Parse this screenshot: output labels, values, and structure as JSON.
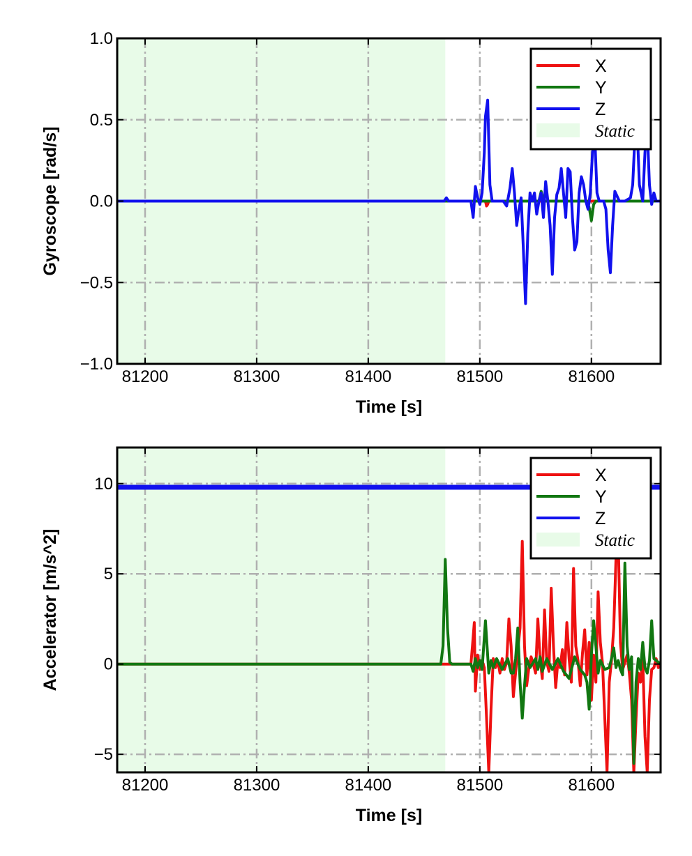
{
  "chart_data": [
    {
      "type": "line",
      "xlabel": "Time [s]",
      "ylabel": "Gyroscope [rad/s]",
      "xlim": [
        81175,
        81662
      ],
      "ylim": [
        -1.0,
        1.0
      ],
      "xticks": [
        81200,
        81300,
        81400,
        81500,
        81600
      ],
      "xtick_labels": [
        "81200",
        "81300",
        "81400",
        "81500",
        "81600"
      ],
      "yticks": [
        1.0,
        0.5,
        0.0,
        -0.5,
        -1.0
      ],
      "ytick_labels": [
        "1.0",
        "0.5",
        "0.0",
        "−0.5",
        "−1.0"
      ],
      "grid": true,
      "legend_position": "top-right",
      "static_region": {
        "label": "Static",
        "x_start": 81175,
        "x_end": 81469,
        "color": "#e8fbe8"
      },
      "series": [
        {
          "name": "X",
          "color": "#ee1111",
          "x": [
            81175,
            81469,
            81505,
            81506,
            81507,
            81508,
            81662
          ],
          "y": [
            0,
            0,
            0,
            -0.03,
            -0.02,
            0,
            0
          ]
        },
        {
          "name": "Y",
          "color": "#117711",
          "x": [
            81175,
            81469,
            81553,
            81555,
            81557,
            81596,
            81598,
            81600,
            81602,
            81604,
            81662
          ],
          "y": [
            0,
            0,
            0,
            0.06,
            0,
            0,
            -0.04,
            -0.12,
            -0.02,
            0,
            0
          ]
        },
        {
          "name": "Z",
          "color": "#1111ee",
          "x": [
            81175,
            81468,
            81470,
            81472,
            81492,
            81494,
            81496,
            81498,
            81500,
            81502,
            81504,
            81505,
            81507,
            81509,
            81511,
            81513,
            81518,
            81521,
            81524,
            81527,
            81529,
            81531,
            81533,
            81535,
            81537,
            81539,
            81541,
            81543,
            81545,
            81547,
            81549,
            81551,
            81553,
            81555,
            81557,
            81559,
            81561,
            81563,
            81565,
            81567,
            81569,
            81571,
            81573,
            81575,
            81577,
            81579,
            81581,
            81583,
            81585,
            81587,
            81589,
            81591,
            81593,
            81595,
            81597,
            81599,
            81601,
            81603,
            81605,
            81607,
            81609,
            81611,
            81613,
            81615,
            81617,
            81619,
            81621,
            81625,
            81630,
            81635,
            81637,
            81639,
            81641,
            81643,
            81646,
            81648,
            81650,
            81652,
            81654,
            81656,
            81658,
            81662
          ],
          "y": [
            0,
            0,
            0.02,
            0,
            0,
            -0.1,
            0.09,
            0.02,
            -0.02,
            0.05,
            0.3,
            0.52,
            0.62,
            0.1,
            0,
            0,
            0,
            0,
            -0.03,
            0.08,
            0.2,
            0.05,
            -0.15,
            -0.05,
            0.02,
            -0.3,
            -0.63,
            -0.2,
            0.05,
            0,
            0.05,
            -0.08,
            0,
            0.05,
            -0.1,
            0.12,
            0.0,
            -0.15,
            -0.45,
            -0.1,
            0.04,
            0.08,
            0.2,
            0.05,
            -0.1,
            0.2,
            0.18,
            -0.1,
            -0.3,
            -0.25,
            0.05,
            0.15,
            0.1,
            0,
            -0.05,
            0.05,
            0.3,
            0.4,
            0.05,
            0,
            0.0,
            0,
            -0.05,
            -0.3,
            -0.44,
            -0.15,
            0.06,
            0,
            0,
            0.02,
            0.1,
            0.4,
            0.45,
            0.1,
            0,
            0.3,
            0.45,
            0.1,
            -0.02,
            0.05,
            0,
            0
          ]
        }
      ]
    },
    {
      "type": "line",
      "xlabel": "Time [s]",
      "ylabel": "Accelerator [m/s^2]",
      "xlim": [
        81175,
        81662
      ],
      "ylim": [
        -6.0,
        12.0
      ],
      "xticks": [
        81200,
        81300,
        81400,
        81500,
        81600
      ],
      "xtick_labels": [
        "81200",
        "81300",
        "81400",
        "81500",
        "81600"
      ],
      "yticks": [
        10,
        5,
        0,
        -5
      ],
      "ytick_labels": [
        "10",
        "5",
        "0",
        "−5"
      ],
      "grid": true,
      "legend_position": "top-right",
      "static_region": {
        "label": "Static",
        "x_start": 81175,
        "x_end": 81469,
        "color": "#e8fbe8"
      },
      "series": [
        {
          "name": "X",
          "color": "#ee1111",
          "x": [
            81175,
            81492,
            81494,
            81495,
            81496,
            81498,
            81500,
            81502,
            81504,
            81506,
            81508,
            81510,
            81512,
            81514,
            81516,
            81518,
            81520,
            81522,
            81524,
            81526,
            81528,
            81530,
            81532,
            81534,
            81536,
            81538,
            81540,
            81542,
            81544,
            81546,
            81548,
            81550,
            81552,
            81554,
            81556,
            81558,
            81560,
            81562,
            81564,
            81566,
            81568,
            81570,
            81572,
            81574,
            81576,
            81578,
            81580,
            81582,
            81584,
            81586,
            81588,
            81590,
            81592,
            81594,
            81596,
            81598,
            81600,
            81602,
            81604,
            81606,
            81608,
            81610,
            81612,
            81614,
            81616,
            81618,
            81620,
            81622,
            81624,
            81626,
            81628,
            81630,
            81632,
            81634,
            81636,
            81638,
            81640,
            81642,
            81644,
            81646,
            81648,
            81650,
            81652,
            81654,
            81656,
            81658,
            81660,
            81662
          ],
          "y": [
            0,
            0,
            1.5,
            2.3,
            -1.5,
            0.5,
            -0.3,
            0.2,
            -0.2,
            -3.0,
            -6.0,
            -2.5,
            0.3,
            -0.2,
            0.2,
            -0.5,
            0.3,
            -0.3,
            0.1,
            2.5,
            1.0,
            -1.8,
            -0.5,
            0.8,
            2.0,
            6.8,
            1.0,
            -1.2,
            -0.2,
            0.4,
            0.0,
            -0.5,
            2.5,
            0.3,
            -0.8,
            3.0,
            0.1,
            -0.4,
            4.2,
            1.0,
            -1.3,
            0.2,
            -0.2,
            0.8,
            -0.6,
            2.3,
            0.3,
            -1.0,
            5.3,
            1.0,
            0.2,
            -1.2,
            0.6,
            1.9,
            -0.6,
            1.2,
            -2.0,
            0.5,
            -1.0,
            4.0,
            1.2,
            0.0,
            -3.0,
            -6.0,
            -1.0,
            0.2,
            2.0,
            5.8,
            7.0,
            1.2,
            -0.3,
            0.1,
            0.5,
            -0.5,
            -2.0,
            -6.0,
            -3.0,
            -0.5,
            -1.0,
            0.3,
            -4.0,
            -6.0,
            -2.0,
            -0.3,
            -0.2,
            0.3,
            -0.2,
            0
          ]
        },
        {
          "name": "Y",
          "color": "#117711",
          "x": [
            81175,
            81465,
            81467,
            81469,
            81471,
            81473,
            81475,
            81492,
            81494,
            81496,
            81498,
            81500,
            81502,
            81505,
            81508,
            81510,
            81512,
            81515,
            81520,
            81525,
            81528,
            81530,
            81532,
            81534,
            81536,
            81538,
            81540,
            81542,
            81545,
            81550,
            81552,
            81554,
            81556,
            81560,
            81565,
            81570,
            81575,
            81580,
            81585,
            81590,
            81594,
            81596,
            81598,
            81600,
            81602,
            81604,
            81606,
            81608,
            81612,
            81616,
            81618,
            81620,
            81622,
            81624,
            81626,
            81628,
            81630,
            81632,
            81634,
            81636,
            81638,
            81640,
            81642,
            81644,
            81646,
            81648,
            81650,
            81652,
            81654,
            81656,
            81662
          ],
          "y": [
            0,
            0,
            1.0,
            5.8,
            2.0,
            0.1,
            0,
            0,
            -0.4,
            0.3,
            -0.2,
            0.2,
            -0.3,
            2.4,
            -0.5,
            0.2,
            -0.2,
            0.3,
            -0.3,
            0.3,
            -0.5,
            -0.5,
            0.3,
            2.0,
            -1.0,
            -3.0,
            -1.2,
            0.3,
            -0.2,
            0.3,
            -0.3,
            0.4,
            -0.4,
            0.3,
            -0.3,
            0.3,
            -0.4,
            -0.8,
            0.4,
            -0.3,
            -0.6,
            -1.0,
            -2.5,
            0.5,
            2.4,
            1.0,
            -0.5,
            0.2,
            -0.3,
            -0.2,
            0.3,
            0.9,
            -0.2,
            0.2,
            -0.3,
            -0.6,
            5.6,
            1.0,
            -0.3,
            0.4,
            -5.5,
            -1.0,
            0.3,
            -0.3,
            1.2,
            -0.2,
            -0.5,
            0.2,
            2.4,
            0.3,
            0
          ]
        },
        {
          "name": "Z",
          "color": "#1111ee",
          "x": [
            81175,
            81662
          ],
          "y": [
            9.8,
            9.8
          ]
        }
      ]
    }
  ]
}
